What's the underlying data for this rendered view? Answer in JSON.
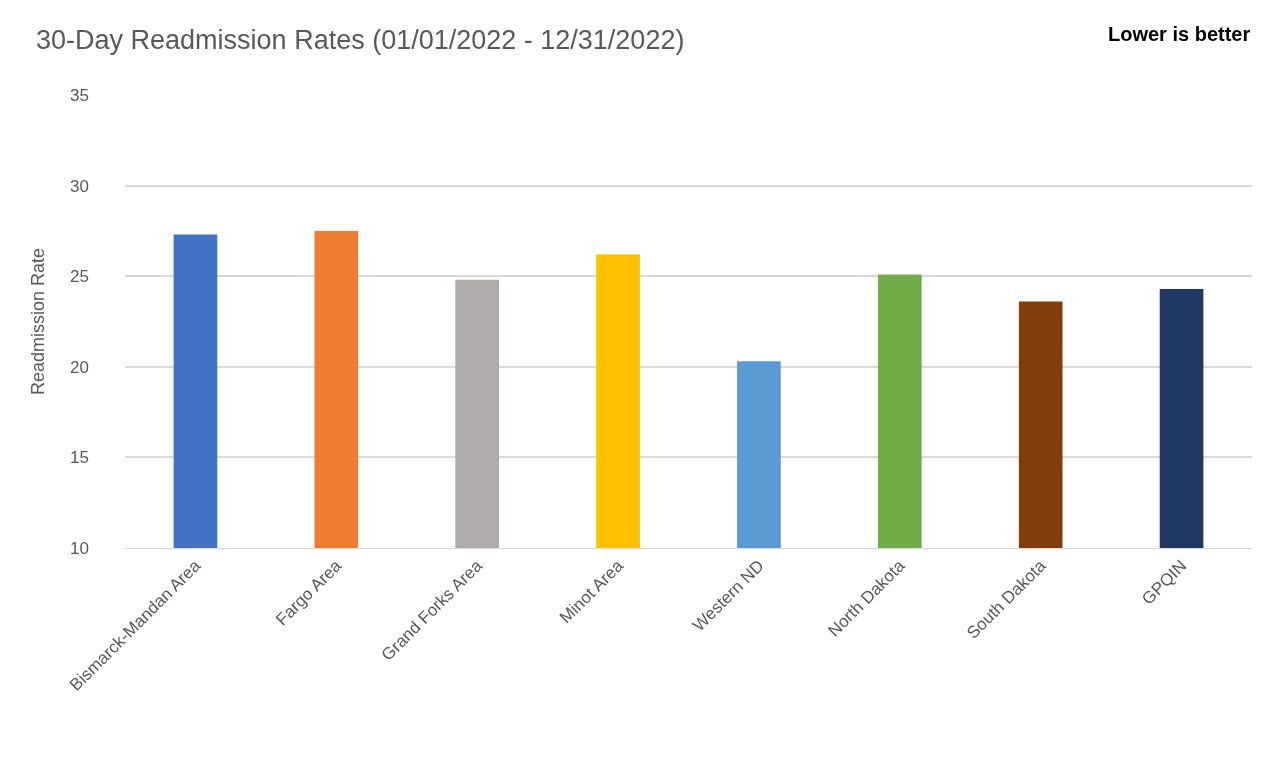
{
  "chart_data": {
    "type": "bar",
    "title": "30-Day Readmission Rates (01/01/2022 - 12/31/2022)",
    "ylabel": "Readmission Rate",
    "annotations": [
      "Lower is better"
    ],
    "categories": [
      "Bismarck-Mandan Area",
      "Fargo Area",
      "Grand Forks Area",
      "Minot Area",
      "Western ND",
      "North Dakota",
      "South Dakota",
      "GPQIN"
    ],
    "values": [
      27.3,
      27.5,
      24.8,
      26.2,
      20.3,
      25.1,
      23.6,
      24.3
    ],
    "colors": [
      "#4472c4",
      "#ed7d31",
      "#afabab",
      "#ffc000",
      "#5b9bd5",
      "#70ad47",
      "#843c0c",
      "#203864"
    ],
    "ylim": [
      10,
      35
    ],
    "yticks": [
      10,
      15,
      20,
      25,
      30,
      35
    ],
    "grid": "y"
  }
}
